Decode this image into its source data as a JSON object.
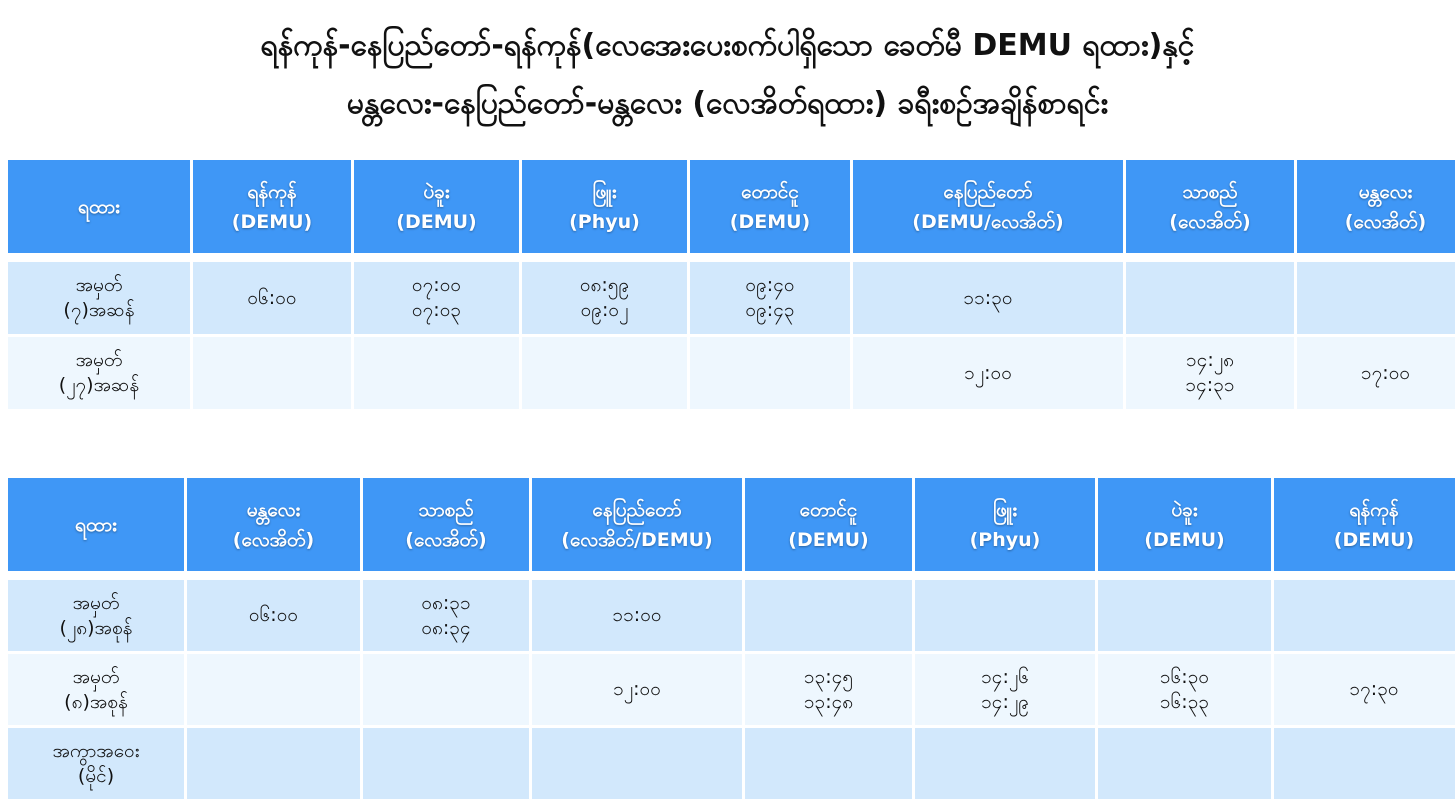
{
  "title": {
    "line1": "ရန်ကုန်-နေပြည်တော်-ရန်ကုန်(လေအေးပေးစက်ပါရှိသော ခေတ်မီ DEMU ရထား)နှင့်",
    "line2": "မန္တလေး-နေပြည်တော်-မန္တလေး (လေအိတ်ရထား) ခရီးစဉ်အချိန်စာရင်း"
  },
  "colors": {
    "header_bg": "#3f97f6",
    "row_dark": "#d2e8fc",
    "row_light": "#eef7fe"
  },
  "tables": [
    {
      "headers": [
        {
          "station": "ရထား",
          "type": ""
        },
        {
          "station": "ရန်ကုန်",
          "type": "(DEMU)"
        },
        {
          "station": "ပဲခူး",
          "type": "(DEMU)"
        },
        {
          "station": "ဖြူး",
          "type": "(Phyu)"
        },
        {
          "station": "တောင်ငူ",
          "type": "(DEMU)"
        },
        {
          "station": "နေပြည်တော်",
          "type": "(DEMU/လေအိတ်)"
        },
        {
          "station": "သာစည်",
          "type": "(လေအိတ်)"
        },
        {
          "station": "မန္တလေး",
          "type": "(လေအိတ်)"
        }
      ],
      "rows": [
        [
          "အမှတ်\n(၇)အဆန်",
          "၀၆:၀၀",
          "၀၇:၀၀\n၀၇:၀၃",
          "၀၈:၅၉\n၀၉:၀၂",
          "၀၉:၄၀\n၀၉:၄၃",
          "၁၁:၃၀",
          "",
          ""
        ],
        [
          "အမှတ်\n(၂၇)အဆန်",
          "",
          "",
          "",
          "",
          "၁၂:၀၀",
          "၁၄:၂၈\n၁၄:၃၁",
          "၁၇:၀၀"
        ]
      ]
    },
    {
      "headers": [
        {
          "station": "ရထား",
          "type": ""
        },
        {
          "station": "မန္တလေး",
          "type": "(လေအိတ်)"
        },
        {
          "station": "သာစည်",
          "type": "(လေအိတ်)"
        },
        {
          "station": "နေပြည်တော်",
          "type": "(လေအိတ်/DEMU)"
        },
        {
          "station": "တောင်ငူ",
          "type": "(DEMU)"
        },
        {
          "station": "ဖြူး",
          "type": "(Phyu)"
        },
        {
          "station": "ပဲခူး",
          "type": "(DEMU)"
        },
        {
          "station": "ရန်ကုန်",
          "type": "(DEMU)"
        }
      ],
      "rows": [
        [
          "အမှတ်\n(၂၈)အစုန်",
          "၀၆:၀၀",
          "၀၈:၃၁\n၀၈:၃၄",
          "၁၁:၀၀",
          "",
          "",
          "",
          ""
        ],
        [
          "အမှတ်\n(၈)အစုန်",
          "",
          "",
          "၁၂:၀၀",
          "၁၃:၄၅\n၁၃:၄၈",
          "၁၄:၂၆\n၁၄:၂၉",
          "၁၆:၃၀\n၁၆:၃၃",
          "၁၇:၃၀"
        ],
        [
          "အကွာအဝေး\n(မိုင်)",
          "",
          "",
          "",
          "",
          "",
          "",
          ""
        ]
      ]
    }
  ]
}
